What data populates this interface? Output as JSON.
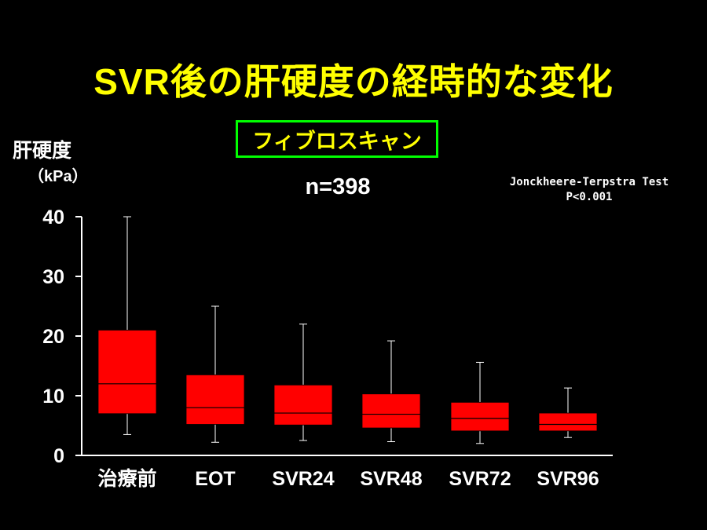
{
  "title": "SVR後の肝硬度の経時的な変化",
  "method": "フィブロスキャン",
  "n_label": "n=398",
  "test": {
    "name": "Jonckheere-Terpstra Test",
    "p": "P<0.001"
  },
  "colors": {
    "background": "#000000",
    "title": "#ffff00",
    "method_border": "#00ff00",
    "box_fill": "#ff0000",
    "axis": "#ffffff"
  },
  "chart_data": {
    "type": "box",
    "ylabel": "肝硬度",
    "yunit": "（kPa）",
    "ylim": [
      0,
      40
    ],
    "yticks": [
      "0",
      "10",
      "20",
      "30",
      "40"
    ],
    "categories": [
      "治療前",
      "EOT",
      "SVR24",
      "SVR48",
      "SVR72",
      "SVR96"
    ],
    "boxes": [
      {
        "min": 3.5,
        "q1": 7.0,
        "median": 12.0,
        "q3": 21.0,
        "max": 40.0
      },
      {
        "min": 2.2,
        "q1": 5.2,
        "median": 8.0,
        "q3": 13.5,
        "max": 25.0
      },
      {
        "min": 2.5,
        "q1": 5.1,
        "median": 7.1,
        "q3": 11.8,
        "max": 22.0
      },
      {
        "min": 2.3,
        "q1": 4.6,
        "median": 6.9,
        "q3": 10.3,
        "max": 19.2
      },
      {
        "min": 2.0,
        "q1": 4.1,
        "median": 6.2,
        "q3": 8.9,
        "max": 15.6
      },
      {
        "min": 3.0,
        "q1": 4.1,
        "median": 5.2,
        "q3": 7.1,
        "max": 11.3
      }
    ],
    "grid": false,
    "legend": "none"
  }
}
